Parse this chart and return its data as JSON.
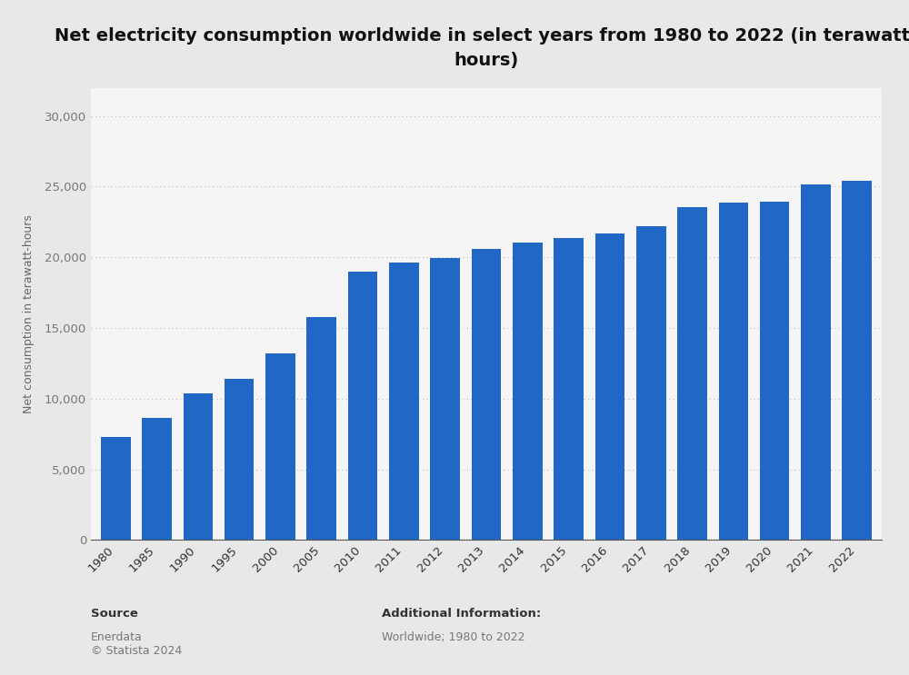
{
  "title": "Net electricity consumption worldwide in select years from 1980 to 2022 (in terawatt-\nhours)",
  "ylabel": "Net consumption in terawatt-hours",
  "categories": [
    "1980",
    "1985",
    "1990",
    "1995",
    "2000",
    "2005",
    "2010",
    "2011",
    "2012",
    "2013",
    "2014",
    "2015",
    "2016",
    "2017",
    "2018",
    "2019",
    "2020",
    "2021",
    "2022"
  ],
  "values": [
    7300,
    8650,
    10380,
    11430,
    13220,
    15750,
    18990,
    19620,
    19960,
    20570,
    21030,
    21360,
    21700,
    22220,
    23540,
    23880,
    23940,
    25170,
    25390
  ],
  "bar_color": "#2167c5",
  "background_color": "#e8e8e8",
  "plot_background_color": "#f5f5f5",
  "ylim": [
    0,
    32000
  ],
  "yticks": [
    0,
    5000,
    10000,
    15000,
    20000,
    25000,
    30000
  ],
  "source_label": "Source",
  "source_text": "Enerdata\n© Statista 2024",
  "additional_label": "Additional Information:",
  "additional_text": "Worldwide; 1980 to 2022",
  "title_fontsize": 14,
  "ylabel_fontsize": 9,
  "tick_fontsize": 9.5
}
